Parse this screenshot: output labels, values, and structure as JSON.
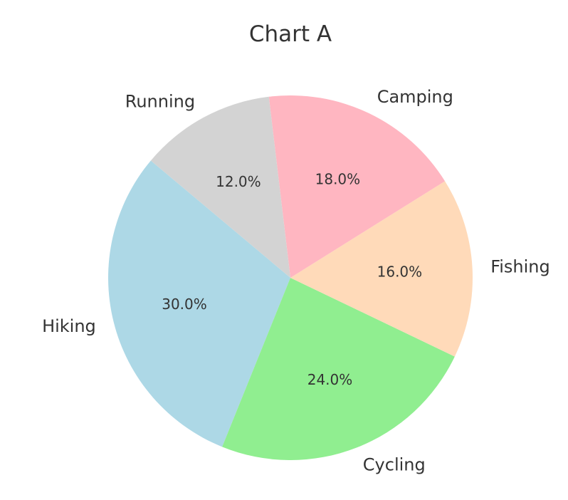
{
  "chart_data": {
    "type": "pie",
    "title": "Chart A",
    "slices": [
      {
        "label": "Hiking",
        "value": 30.0,
        "pct_label": "30.0%",
        "color": "#add8e6"
      },
      {
        "label": "Cycling",
        "value": 24.0,
        "pct_label": "24.0%",
        "color": "#90ee90"
      },
      {
        "label": "Fishing",
        "value": 16.0,
        "pct_label": "16.0%",
        "color": "#ffdab9"
      },
      {
        "label": "Camping",
        "value": 18.0,
        "pct_label": "18.0%",
        "color": "#ffb6c1"
      },
      {
        "label": "Running",
        "value": 12.0,
        "pct_label": "12.0%",
        "color": "#d3d3d3"
      }
    ],
    "start_angle_deg": 140,
    "direction": "counterclockwise",
    "legend": "none"
  }
}
